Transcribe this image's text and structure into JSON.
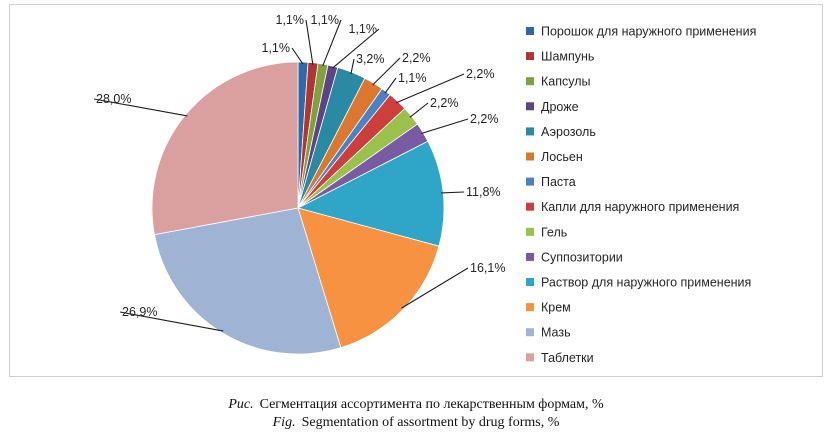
{
  "chart_data": {
    "type": "pie",
    "series": [
      {
        "name": "Порошок для наружного применения",
        "value": 1.1,
        "label": "1,1%",
        "color": "#2e6aa8"
      },
      {
        "name": "Шампунь",
        "value": 1.1,
        "label": "1,1%",
        "color": "#b03533"
      },
      {
        "name": "Капсулы",
        "value": 1.1,
        "label": "1,1%",
        "color": "#7fa23e"
      },
      {
        "name": "Дроже",
        "value": 1.1,
        "label": "1,1%",
        "color": "#5e4483"
      },
      {
        "name": "Аэрозоль",
        "value": 3.2,
        "label": "3,2%",
        "color": "#2a8aa4"
      },
      {
        "name": "Лосьен",
        "value": 2.2,
        "label": "2,2%",
        "color": "#d9782e"
      },
      {
        "name": "Паста",
        "value": 1.1,
        "label": "1,1%",
        "color": "#4a82c4"
      },
      {
        "name": "Капли для наружного применения",
        "value": 2.2,
        "label": "2,2%",
        "color": "#cd3f3c"
      },
      {
        "name": "Гель",
        "value": 2.2,
        "label": "2,2%",
        "color": "#9bc14d"
      },
      {
        "name": "Суппозитории",
        "value": 2.2,
        "label": "2,2%",
        "color": "#7a5aa2"
      },
      {
        "name": "Раствор для наружного применения",
        "value": 11.8,
        "label": "11,8%",
        "color": "#2fa6c7"
      },
      {
        "name": "Крем",
        "value": 16.1,
        "label": "16,1%",
        "color": "#f79242"
      },
      {
        "name": "Мазь",
        "value": 26.9,
        "label": "26,9%",
        "color": "#9fb4d4"
      },
      {
        "name": "Таблетки",
        "value": 28.0,
        "label": "28,0%",
        "color": "#d9a09f"
      }
    ],
    "legend_position": "right",
    "start_angle": "12 o'clock",
    "direction": "clockwise"
  },
  "caption": {
    "ru_tag": "Рис.",
    "ru_text": "Сегментация ассортимента по лекарственным формам, %",
    "en_tag": "Fig.",
    "en_text": "Segmentation of assortment by drug forms, %"
  }
}
